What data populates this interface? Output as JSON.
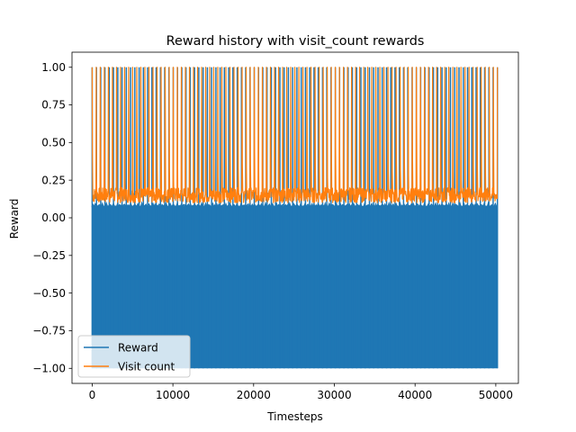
{
  "chart_data": {
    "type": "line",
    "title": "Reward history with visit_count rewards",
    "xlabel": "Timesteps",
    "ylabel": "Reward",
    "xlim": [
      -2500,
      52800
    ],
    "ylim": [
      -1.1,
      1.1
    ],
    "xticks": [
      0,
      10000,
      20000,
      30000,
      40000,
      50000
    ],
    "xtick_labels": [
      "0",
      "10000",
      "20000",
      "30000",
      "40000",
      "50000"
    ],
    "yticks": [
      -1.0,
      -0.75,
      -0.5,
      -0.25,
      0.0,
      0.25,
      0.5,
      0.75,
      1.0
    ],
    "ytick_labels": [
      "−1.00",
      "−0.75",
      "−0.50",
      "−0.25",
      "0.00",
      "0.25",
      "0.50",
      "0.75",
      "1.00"
    ],
    "grid": false,
    "legend_position": "lower-left",
    "series": [
      {
        "name": "Reward",
        "color": "#1f77b4",
        "x_range": [
          0,
          50200
        ],
        "values_min": -1.0,
        "values_max": 1.0,
        "upper_envelope_typical": 0.08,
        "description_values": "oscillates between -1.0 and 1.0 every step; periodic spikes to 1.0"
      },
      {
        "name": "Visit count",
        "color": "#ff7f0e",
        "x_range": [
          0,
          50200
        ],
        "values_min": 0.1,
        "values_max": 1.0,
        "baseline_band": [
          0.1,
          0.2
        ],
        "spike_peak": 1.0
      }
    ]
  }
}
